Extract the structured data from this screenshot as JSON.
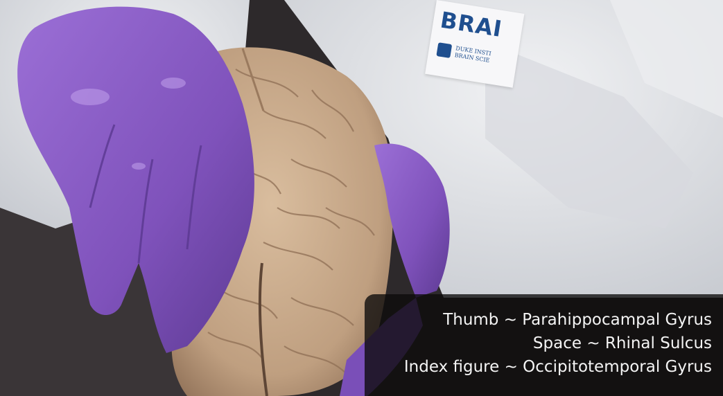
{
  "badge": {
    "title": "BRAI",
    "subtitle_line1": "DUKE INSTI",
    "subtitle_line2": "BRAIN SCIE"
  },
  "caption": {
    "line1": "Thumb ~ Parahippocampal Gyrus",
    "line2": "Space ~ Rhinal Sulcus",
    "line3": "Index figure ~ Occipitotemporal Gyrus"
  },
  "colors": {
    "glove": "#8a5cc4",
    "brain": "#c9a98a",
    "gown": "#e4e6ea"
  }
}
